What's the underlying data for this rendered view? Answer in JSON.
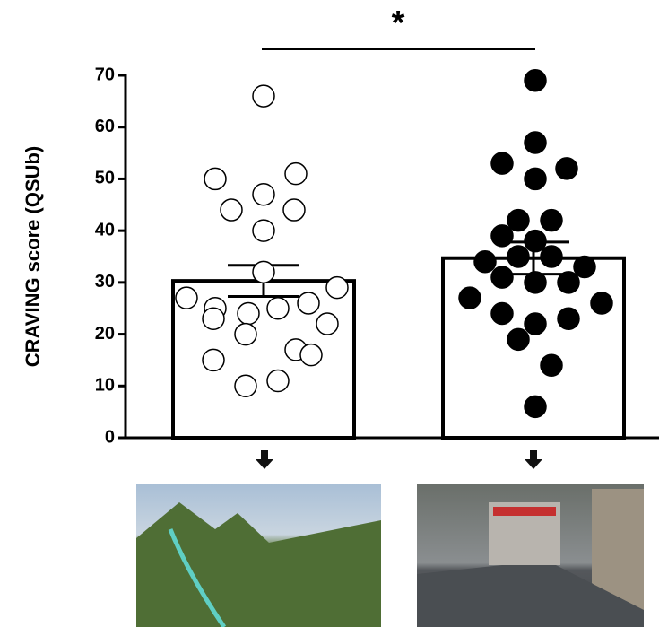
{
  "chart_data": {
    "type": "bar",
    "y_label": "CRAVING score (QSUb)",
    "annotation": "*",
    "categories": [
      null,
      null
    ],
    "values": [
      30.3,
      34.7
    ],
    "errors": [
      3,
      3.1
    ],
    "color": "#ffffff",
    "points": [
      [
        66,
        50,
        51,
        47,
        44,
        44,
        40,
        32,
        27,
        29,
        25,
        24,
        25,
        26,
        23,
        22,
        20,
        17,
        16,
        15,
        11,
        10
      ],
      [
        69,
        57,
        53,
        52,
        50,
        42,
        42,
        39,
        38,
        34,
        35,
        35,
        33,
        27,
        31,
        30,
        30,
        24,
        22,
        23,
        26,
        19,
        14,
        6
      ]
    ],
    "point_colors": [
      "#ffffff",
      "#000000"
    ],
    "ylim": [
      0,
      70
    ],
    "yticks": [
      0,
      10,
      20,
      30,
      40,
      50,
      60,
      70
    ]
  }
}
